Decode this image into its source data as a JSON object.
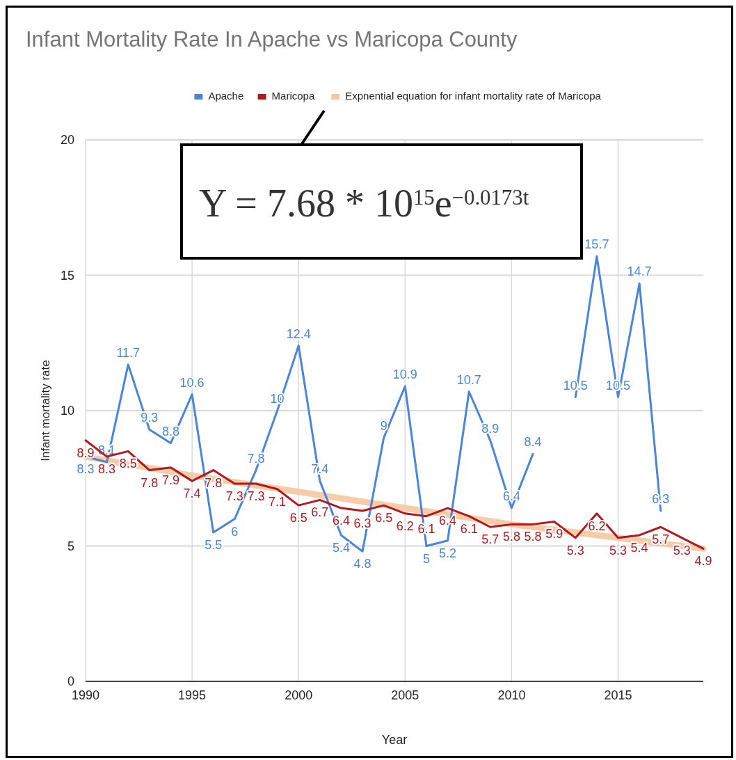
{
  "chart_data": {
    "type": "line",
    "title": "Infant Mortality Rate In Apache vs Maricopa County",
    "xlabel": "Year",
    "ylabel": "Infant mortality rate",
    "annotations": [
      "Y = 7.68 * 10$^{15}$e$^{−0.0173t}$"
    ],
    "x": [
      1990,
      1991,
      1992,
      1993,
      1994,
      1995,
      1996,
      1997,
      1998,
      1999,
      2000,
      2001,
      2002,
      2003,
      2004,
      2005,
      2006,
      2007,
      2008,
      2009,
      2010,
      2011,
      2012,
      2013,
      2014,
      2015,
      2016,
      2017,
      2018,
      2019
    ],
    "series": [
      {
        "name": "Expnential equation for infant mortality rate of Maricopa",
        "color": "#f5c6a0",
        "x": [
          1990,
          1995,
          2000,
          2005,
          2010,
          2015,
          2019
        ],
        "values": [
          8.3,
          7.6,
          7.0,
          6.4,
          5.8,
          5.3,
          4.9
        ]
      },
      {
        "name": "Apache",
        "color": "#4a86d8",
        "values": [
          8.3,
          8.1,
          11.7,
          9.3,
          8.8,
          10.6,
          5.5,
          6,
          7.8,
          10,
          12.4,
          7.4,
          5.4,
          4.8,
          9,
          10.9,
          5,
          5.2,
          10.7,
          8.9,
          6.4,
          8.4,
          null,
          10.5,
          15.7,
          10.5,
          14.7,
          6.3,
          null,
          null
        ],
        "value_labels": [
          "8.3",
          "8.1",
          "11.7",
          "9.3",
          "8.8",
          "10.6",
          "5.5",
          "6",
          "7.8",
          "10",
          "12.4",
          "7.4",
          "5.4",
          "4.8",
          "9",
          "10.9",
          "5",
          "5.2",
          "10.7",
          "8.9",
          "6.4",
          "8.4",
          null,
          "10.5",
          "15.7",
          "10.5",
          "14.7",
          "6.3",
          null,
          null
        ]
      },
      {
        "name": "Maricopa",
        "color": "#b0191e",
        "values": [
          8.9,
          8.3,
          8.5,
          7.8,
          7.9,
          7.4,
          7.8,
          7.3,
          7.3,
          7.1,
          6.5,
          6.7,
          6.4,
          6.3,
          6.5,
          6.2,
          6.1,
          6.4,
          6.1,
          5.7,
          5.8,
          5.8,
          5.9,
          5.3,
          6.2,
          5.3,
          5.4,
          5.7,
          5.3,
          4.9
        ],
        "value_labels": [
          "8.9",
          "8.3",
          "8.5",
          "7.8",
          "7.9",
          "7.4",
          "7.8",
          "7.3",
          "7.3",
          "7.1",
          "6.5",
          "6.7",
          "6.4",
          "6.3",
          "6.5",
          "6.2",
          "6.1",
          "6.4",
          "6.1",
          "5.7",
          "5.8",
          "5.8",
          "5.9",
          "5.3",
          "6.2",
          "5.3",
          "5.4",
          "5.7",
          "5.3",
          "4.9"
        ]
      }
    ],
    "xlim": [
      1990,
      2019
    ],
    "xticks": [
      1990,
      1995,
      2000,
      2005,
      2010,
      2015
    ],
    "ylim": [
      0,
      20
    ],
    "yticks": [
      0,
      5,
      10,
      15,
      20
    ],
    "grid": true,
    "legend": "top"
  }
}
